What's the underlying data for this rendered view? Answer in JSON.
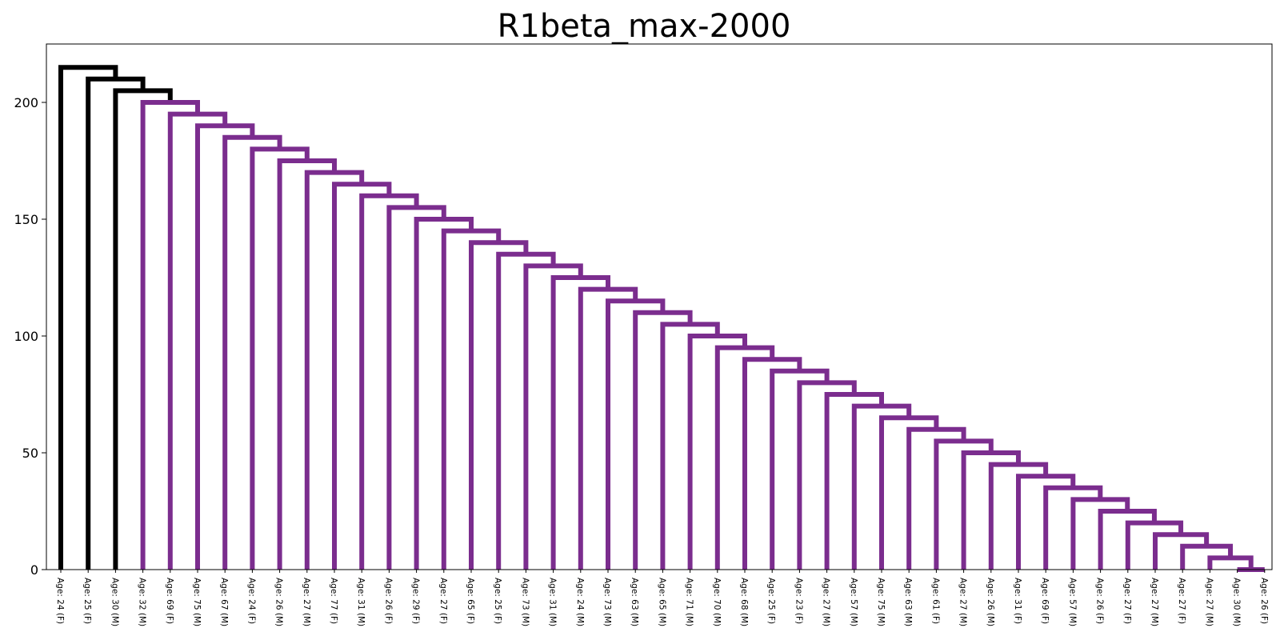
{
  "chart_data": {
    "type": "dendrogram",
    "title": "R1beta_max-2000",
    "xlabel": "",
    "ylabel": "",
    "ylim": [
      0,
      225
    ],
    "yticks": [
      0,
      50,
      100,
      150,
      200
    ],
    "grid": false,
    "colors": {
      "above_threshold": "#000000",
      "cluster": "#7b2d8e"
    },
    "leaves": [
      "Age: 24 (F)",
      "Age: 25 (F)",
      "Age: 30 (M)",
      "Age: 32 (M)",
      "Age: 69 (F)",
      "Age: 75 (M)",
      "Age: 67 (M)",
      "Age: 24 (F)",
      "Age: 26 (M)",
      "Age: 27 (M)",
      "Age: 77 (F)",
      "Age: 31 (M)",
      "Age: 26 (F)",
      "Age: 29 (F)",
      "Age: 27 (F)",
      "Age: 65 (F)",
      "Age: 25 (F)",
      "Age: 73 (M)",
      "Age: 31 (M)",
      "Age: 24 (M)",
      "Age: 73 (M)",
      "Age: 63 (M)",
      "Age: 65 (M)",
      "Age: 71 (M)",
      "Age: 70 (M)",
      "Age: 68 (M)",
      "Age: 25 (F)",
      "Age: 23 (F)",
      "Age: 27 (M)",
      "Age: 57 (M)",
      "Age: 75 (M)",
      "Age: 63 (M)",
      "Age: 61 (F)",
      "Age: 27 (M)",
      "Age: 26 (M)",
      "Age: 31 (F)",
      "Age: 69 (F)",
      "Age: 57 (M)",
      "Age: 26 (F)",
      "Age: 27 (F)",
      "Age: 27 (M)",
      "Age: 27 (F)",
      "Age: 27 (M)",
      "Age: 30 (M)",
      "Age: 26 (F)"
    ],
    "merge_heights": [
      215,
      210,
      205,
      200,
      195,
      190,
      185,
      180,
      175,
      170,
      165,
      160,
      155,
      150,
      145,
      140,
      135,
      130,
      125,
      120,
      115,
      110,
      105,
      100,
      95,
      90,
      85,
      80,
      75,
      70,
      65,
      60,
      55,
      50,
      45,
      40,
      35,
      30,
      25,
      20,
      15,
      10,
      5,
      0
    ],
    "black_merges": 3
  }
}
